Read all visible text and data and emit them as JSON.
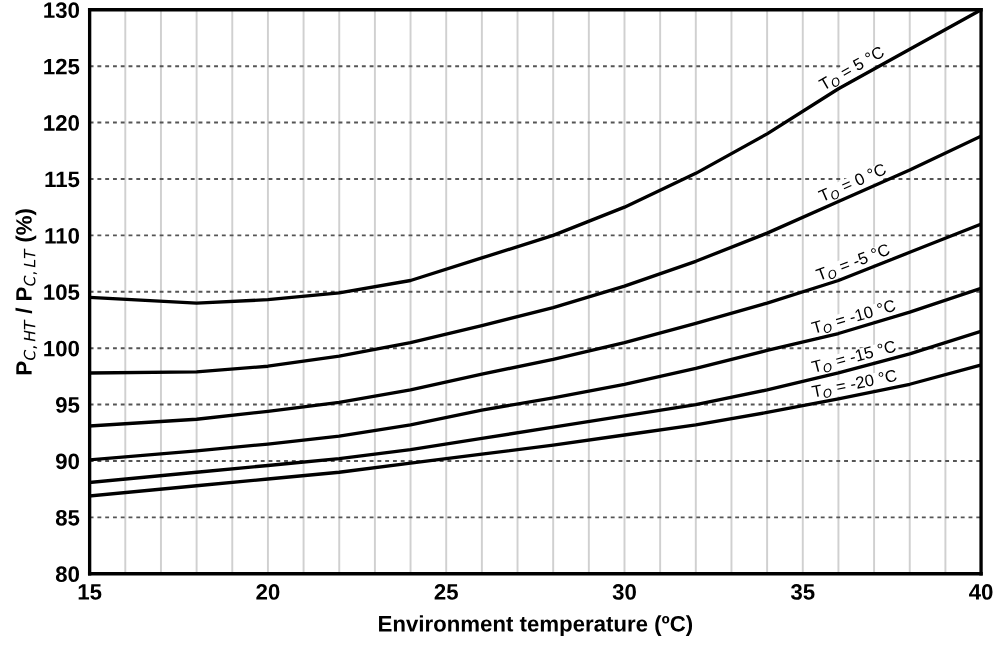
{
  "chart_data": {
    "type": "line",
    "xlabel": "Environment temperature (ºC)",
    "ylabel": "P$_{C,HT}$ / P$_{C,LT}$ (%)",
    "x": [
      15,
      18,
      20,
      22,
      24,
      26,
      28,
      30,
      32,
      34,
      36,
      38,
      40
    ],
    "xlim": [
      15,
      40
    ],
    "ylim": [
      80,
      130
    ],
    "xticks": [
      15,
      {
        "value": 16,
        "label": null
      },
      {
        "value": 17,
        "label": null
      },
      {
        "value": 18,
        "label": null
      },
      {
        "value": 19,
        "label": null
      },
      20,
      {
        "value": 21,
        "label": null
      },
      {
        "value": 22,
        "label": null
      },
      {
        "value": 23,
        "label": null
      },
      {
        "value": 24,
        "label": null
      },
      25,
      {
        "value": 26,
        "label": null
      },
      {
        "value": 27,
        "label": null
      },
      {
        "value": 28,
        "label": null
      },
      {
        "value": 29,
        "label": null
      },
      30,
      {
        "value": 31,
        "label": null
      },
      {
        "value": 32,
        "label": null
      },
      {
        "value": 33,
        "label": null
      },
      {
        "value": 34,
        "label": null
      },
      35,
      {
        "value": 36,
        "label": null
      },
      {
        "value": 37,
        "label": null
      },
      {
        "value": 38,
        "label": null
      },
      {
        "value": 39,
        "label": null
      },
      40
    ],
    "yticks": [
      80,
      85,
      90,
      95,
      100,
      105,
      110,
      115,
      120,
      125,
      130
    ],
    "grid": true,
    "legend": false,
    "marker": "none",
    "line_style": "solid",
    "series": [
      {
        "name": "T$_{O}$ = 5 °C",
        "color": "#000000",
        "values": [
          104.5,
          104,
          104.3,
          104.9,
          106,
          108,
          110,
          112.5,
          115.5,
          119,
          123,
          126.5,
          130
        ]
      },
      {
        "name": "T$_{O}$ = 0 °C",
        "color": "#000000",
        "values": [
          97.8,
          97.9,
          98.4,
          99.3,
          100.5,
          102,
          103.6,
          105.5,
          107.7,
          110.2,
          113,
          115.8,
          118.8
        ]
      },
      {
        "name": "T$_{O}$ = -5 °C",
        "color": "#000000",
        "values": [
          93.1,
          93.7,
          94.4,
          95.2,
          96.3,
          97.7,
          99,
          100.5,
          102.2,
          104,
          106,
          108.5,
          111
        ]
      },
      {
        "name": "T$_{O}$ = -10 °C",
        "color": "#000000",
        "values": [
          90.1,
          90.9,
          91.5,
          92.2,
          93.2,
          94.5,
          95.6,
          96.8,
          98.2,
          99.8,
          101.3,
          103.2,
          105.3
        ]
      },
      {
        "name": "T$_{O}$ = -15 °C",
        "color": "#000000",
        "values": [
          88.1,
          89,
          89.6,
          90.2,
          91,
          92,
          93,
          94,
          95,
          96.3,
          97.8,
          99.5,
          101.5
        ]
      },
      {
        "name": "T$_{O}$ = -20 °C",
        "color": "#000000",
        "values": [
          86.9,
          87.8,
          88.4,
          89,
          89.8,
          90.6,
          91.4,
          92.3,
          93.2,
          94.3,
          95.5,
          96.8,
          98.5
        ]
      }
    ]
  }
}
